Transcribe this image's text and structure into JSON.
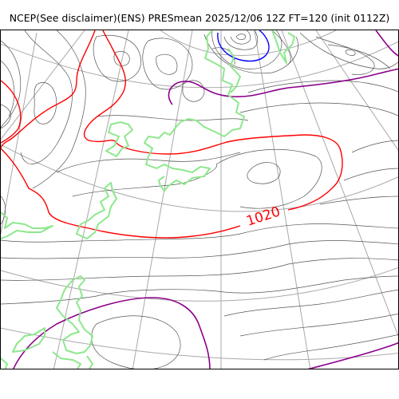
{
  "title": "NCEP(See disclaimer)(ENS) PRESmean 2025/12/06 12Z FT=120 (init 0112Z)",
  "map": {
    "variable": "PRESmean",
    "contour_labels": [
      {
        "text": "1020",
        "color": "#ff0000"
      }
    ],
    "colors": {
      "isobar": "#555555",
      "highlight_1020": "#ff0000",
      "highlight_purple": "#8b008b",
      "highlight_blue": "#0000ff",
      "coastline": "#8de88d",
      "graticule": "#a8a8a8"
    }
  }
}
